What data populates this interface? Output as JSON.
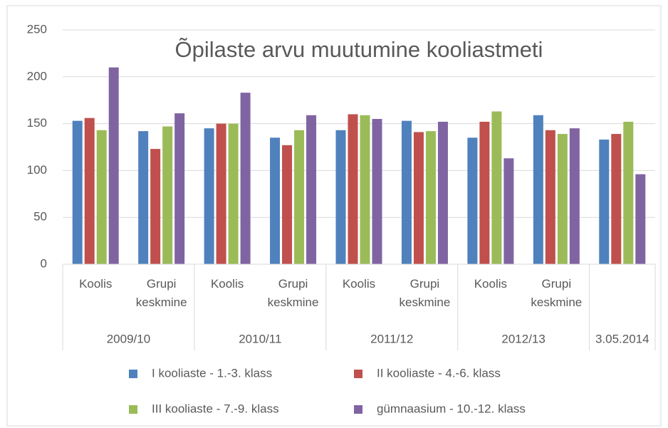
{
  "chart_data": {
    "type": "bar",
    "title": "Õpilaste arvu muutumine kooliastmeti",
    "groups": [
      {
        "name": "2009/10",
        "categories": [
          "Koolis",
          "Grupi keskmine"
        ]
      },
      {
        "name": "2010/11",
        "categories": [
          "Koolis",
          "Grupi keskmine"
        ]
      },
      {
        "name": "2011/12",
        "categories": [
          "Koolis",
          "Grupi keskmine"
        ]
      },
      {
        "name": "2012/13",
        "categories": [
          "Koolis",
          "Grupi keskmine"
        ]
      },
      {
        "name": "3.05.2014",
        "categories": [
          null
        ]
      }
    ],
    "series": [
      {
        "name": "I kooliaste - 1.-3. klass",
        "color": "#4f81bd",
        "values": [
          153,
          142,
          145,
          135,
          143,
          153,
          135,
          159,
          133
        ]
      },
      {
        "name": "II kooliaste - 4.-6. klass",
        "color": "#c0504d",
        "values": [
          156,
          123,
          150,
          127,
          160,
          141,
          152,
          143,
          139
        ]
      },
      {
        "name": "III kooliaste - 7.-9. klass",
        "color": "#9bbb59",
        "values": [
          143,
          147,
          150,
          143,
          159,
          142,
          163,
          139,
          152
        ]
      },
      {
        "name": "gümnaasium - 10.-12. klass",
        "color": "#8064a2",
        "values": [
          210,
          161,
          183,
          159,
          155,
          152,
          113,
          145,
          96
        ]
      }
    ],
    "ylim": [
      0,
      250
    ],
    "yticks": [
      0,
      50,
      100,
      150,
      200,
      250
    ],
    "grid": true
  }
}
